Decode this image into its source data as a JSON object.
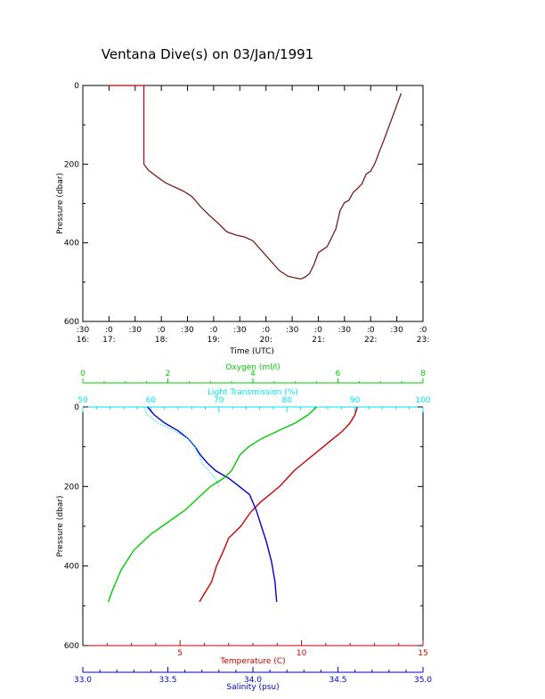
{
  "title": "Ventana Dive(s) on 03/Jan/1991",
  "colors": {
    "axis": "#000000",
    "temperature": "#cc0000",
    "salinity": "#0000cc",
    "oxygen": "#00cc00",
    "light": "#00e5ee"
  },
  "chart_data": [
    {
      "type": "line",
      "title": "Ventana Dive(s) on 03/Jan/1991",
      "xlabel": "Time (UTC)",
      "ylabel": "Pressure (dbar)",
      "xlim": [
        "16:30",
        "23:00"
      ],
      "ylim": [
        600,
        0
      ],
      "x_ticks": [
        {
          "top": ":30",
          "bottom": "16:"
        },
        {
          "top": ":0",
          "bottom": "17:"
        },
        {
          "top": ":30",
          "bottom": ""
        },
        {
          "top": ":0",
          "bottom": "18:"
        },
        {
          "top": ":30",
          "bottom": ""
        },
        {
          "top": ":0",
          "bottom": "19:"
        },
        {
          "top": ":30",
          "bottom": ""
        },
        {
          "top": ":0",
          "bottom": "20:"
        },
        {
          "top": ":30",
          "bottom": ""
        },
        {
          "top": ":0",
          "bottom": "21:"
        },
        {
          "top": ":30",
          "bottom": ""
        },
        {
          "top": ":0",
          "bottom": "22:"
        },
        {
          "top": ":30",
          "bottom": ""
        },
        {
          "top": ":0",
          "bottom": "23:"
        }
      ],
      "y_ticks": [
        "0",
        "200",
        "400",
        "600"
      ],
      "series": [
        {
          "x": [
            "16:58",
            "17:03",
            "17:10",
            "17:20",
            "17:30",
            "17:35",
            "17:39",
            "17:40",
            "17:40",
            "17:45",
            "17:55",
            "18:05",
            "18:15",
            "18:25",
            "18:35",
            "18:45",
            "18:55",
            "19:05",
            "19:15",
            "19:25",
            "19:35",
            "19:45",
            "19:55",
            "20:05",
            "20:15",
            "20:25",
            "20:35",
            "20:40",
            "20:45",
            "20:50",
            "20:55",
            "21:00",
            "21:10",
            "21:20",
            "21:25",
            "21:30",
            "21:35",
            "21:40",
            "21:45",
            "21:50",
            "21:55",
            "22:00",
            "22:05",
            "22:10",
            "22:15",
            "22:20",
            "22:25",
            "22:30",
            "22:35"
          ],
          "y": [
            0,
            0,
            0,
            0,
            0,
            0,
            0,
            0,
            200,
            215,
            232,
            248,
            258,
            268,
            282,
            308,
            330,
            350,
            372,
            380,
            385,
            395,
            420,
            445,
            470,
            485,
            490,
            492,
            487,
            478,
            455,
            425,
            410,
            365,
            318,
            298,
            292,
            272,
            262,
            250,
            225,
            218,
            198,
            168,
            140,
            110,
            80,
            50,
            20
          ]
        }
      ]
    },
    {
      "type": "line",
      "ylabel": "Pressure (dbar)",
      "ylim": [
        600,
        0
      ],
      "y_ticks": [
        "0",
        "200",
        "400",
        "600"
      ],
      "axes": {
        "oxygen": {
          "label": "Oxygen (ml/l)",
          "range": [
            0,
            8
          ],
          "ticks": [
            "0",
            "2",
            "4",
            "6",
            "8"
          ]
        },
        "light": {
          "label": "Light Transmission (%)",
          "range": [
            50,
            100
          ],
          "ticks": [
            "50",
            "60",
            "70",
            "80",
            "90",
            "100"
          ]
        },
        "temperature": {
          "label": "Temperature (C)",
          "range": [
            1,
            15
          ],
          "ticks": [
            "5",
            "10",
            "15"
          ]
        },
        "salinity": {
          "label": "Salinity (psu)",
          "range": [
            33.0,
            35.0
          ],
          "ticks": [
            "33.0",
            "33.5",
            "34.0",
            "34.5",
            "35.0"
          ]
        }
      },
      "series": [
        {
          "name": "Temperature (C)",
          "axis": "temperature",
          "x": [
            12.3,
            12.2,
            12.0,
            11.7,
            11.3,
            10.9,
            10.5,
            10.1,
            9.7,
            9.4,
            9.1,
            8.8,
            8.3,
            7.9,
            7.5,
            7.0,
            6.8,
            6.5,
            6.3,
            6.0,
            5.8
          ],
          "y": [
            0,
            20,
            40,
            60,
            80,
            100,
            120,
            140,
            160,
            180,
            200,
            215,
            240,
            265,
            300,
            330,
            360,
            400,
            440,
            470,
            490
          ]
        },
        {
          "name": "Salinity (psu)",
          "axis": "salinity",
          "x": [
            33.38,
            33.42,
            33.48,
            33.56,
            33.62,
            33.66,
            33.69,
            33.73,
            33.78,
            33.86,
            33.92,
            33.98,
            34.02,
            34.05,
            34.08,
            34.11,
            34.13,
            34.14
          ],
          "y": [
            0,
            20,
            40,
            60,
            80,
            100,
            120,
            140,
            160,
            180,
            200,
            220,
            260,
            300,
            340,
            390,
            440,
            490
          ]
        },
        {
          "name": "Oxygen (ml/l)",
          "axis": "oxygen",
          "x": [
            5.5,
            5.3,
            5.0,
            4.6,
            4.2,
            3.9,
            3.7,
            3.6,
            3.5,
            3.3,
            3.0,
            2.7,
            2.4,
            2.0,
            1.6,
            1.2,
            0.9,
            0.7,
            0.6
          ],
          "y": [
            0,
            20,
            40,
            60,
            80,
            100,
            120,
            140,
            160,
            180,
            200,
            230,
            260,
            290,
            320,
            360,
            410,
            460,
            490
          ]
        },
        {
          "name": "Light Transmission (%)",
          "axis": "light",
          "x": [
            59.0,
            59.5,
            61.0,
            63.5,
            65.5,
            66.5,
            67.0,
            67.5,
            68.5,
            69.5,
            70.0
          ],
          "y": [
            0,
            20,
            40,
            60,
            80,
            100,
            120,
            140,
            160,
            180,
            200
          ]
        }
      ]
    }
  ]
}
